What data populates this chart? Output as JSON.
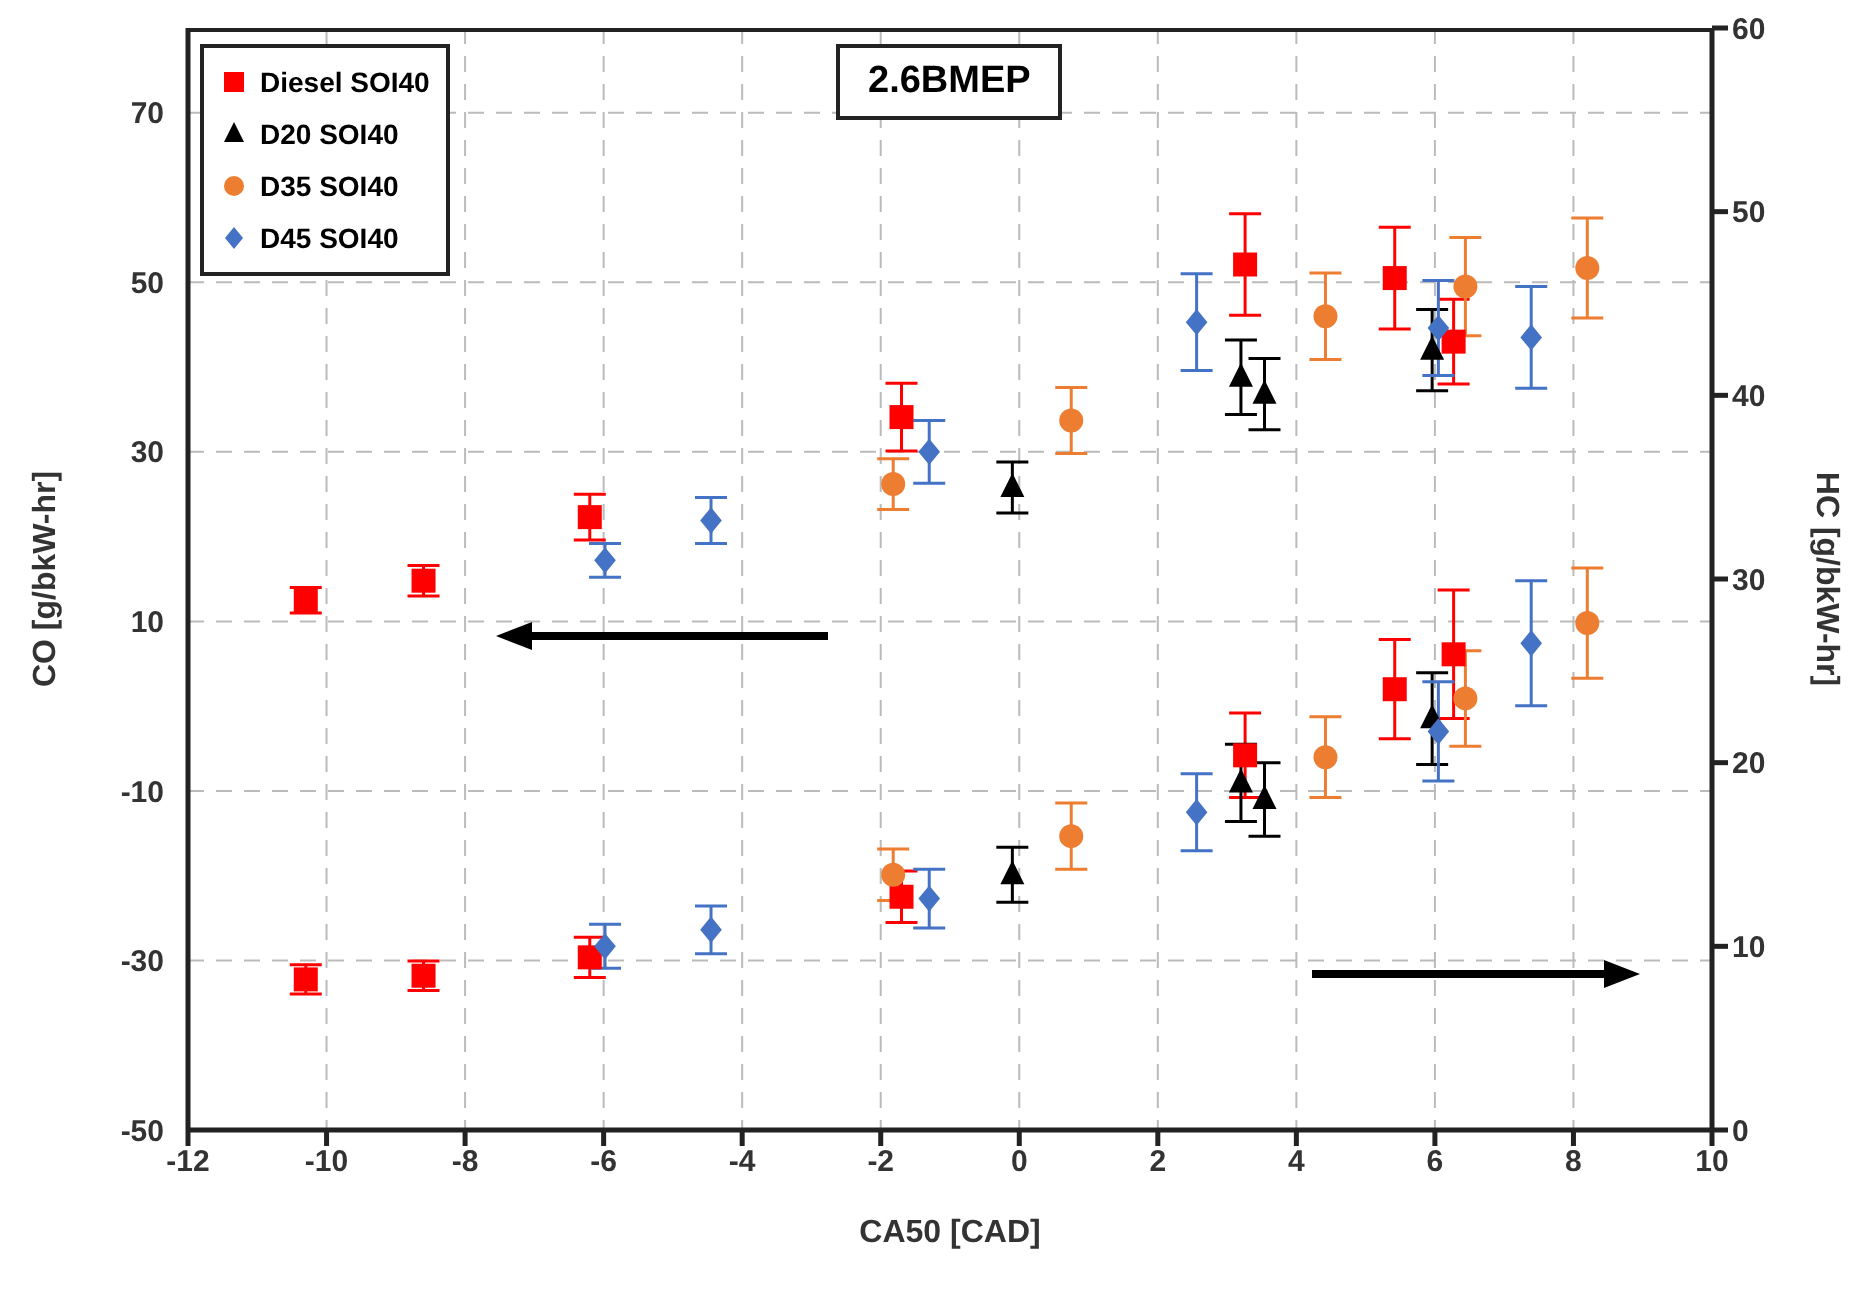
{
  "chart_data": {
    "type": "scatter",
    "title": "2.6BMEP",
    "xlabel": "CA50 [CAD]",
    "ylabel": "CO [g/bkW-hr]",
    "y2label": "HC [g/bkW-hr]",
    "xlim": [
      -12,
      10
    ],
    "xticks": [
      -12,
      -10,
      -8,
      -6,
      -4,
      -2,
      0,
      2,
      4,
      6,
      8,
      10
    ],
    "ylim": [
      -50,
      80
    ],
    "yticks": [
      -50,
      -30,
      -10,
      10,
      30,
      50,
      70
    ],
    "y2lim": [
      0,
      60
    ],
    "y2ticks": [
      0,
      10,
      20,
      30,
      40,
      50,
      60
    ],
    "grid": true,
    "legend": "top left",
    "series": [
      {
        "name": "Diesel SOI40",
        "color": "#ff0000",
        "marker": "square",
        "x": [
          -10.3,
          -8.6,
          -6.2,
          -1.7,
          3.26,
          5.42,
          6.27
        ],
        "values": [
          12.5,
          14.8,
          22.3,
          34.1,
          52.1,
          50.5,
          43.0
        ],
        "errors": [
          1.5,
          1.8,
          2.7,
          4,
          6,
          6,
          5
        ]
      },
      {
        "name": "D20 SOI40",
        "color": "#000000",
        "marker": "triangle",
        "x": [
          -0.1,
          3.2,
          3.54,
          5.96
        ],
        "values": [
          25.8,
          38.8,
          36.8,
          42.0
        ],
        "errors": [
          3,
          4.4,
          4.2,
          4.8
        ]
      },
      {
        "name": "D35 SOI40",
        "color": "#ed7d31",
        "marker": "circle",
        "x": [
          -1.82,
          0.75,
          4.42,
          6.44,
          8.2
        ],
        "values": [
          26.2,
          33.7,
          46.0,
          49.5,
          51.7
        ],
        "errors": [
          3,
          3.9,
          5.1,
          5.8,
          5.9
        ]
      },
      {
        "name": "D45 SOI40",
        "color": "#4472c4",
        "marker": "diamond",
        "x": [
          -5.98,
          -4.45,
          -1.3,
          2.56,
          6.05,
          7.39
        ],
        "values": [
          17.2,
          21.9,
          30.0,
          45.3,
          44.6,
          43.5
        ],
        "errors": [
          2,
          2.7,
          3.7,
          5.7,
          5.6,
          6
        ]
      },
      {
        "color": "#ff0000",
        "marker": "square",
        "axis": "y2",
        "x": [
          -10.3,
          -8.6,
          -6.2,
          -1.7,
          3.26,
          5.42,
          6.27
        ],
        "values": [
          8.2,
          8.4,
          9.4,
          12.7,
          20.4,
          24.0,
          25.9
        ],
        "errors": [
          0.8,
          0.8,
          1.1,
          1.4,
          2.3,
          2.7,
          3.5
        ]
      },
      {
        "color": "#000000",
        "marker": "triangle",
        "axis": "y2",
        "x": [
          -0.1,
          3.2,
          3.54,
          5.96
        ],
        "values": [
          13.9,
          18.9,
          18.0,
          22.4
        ],
        "errors": [
          1.5,
          2.1,
          2,
          2.5
        ]
      },
      {
        "color": "#ed7d31",
        "marker": "circle",
        "axis": "y2",
        "x": [
          -1.82,
          0.75,
          4.42,
          6.44,
          8.2
        ],
        "values": [
          13.9,
          16.0,
          20.3,
          23.5,
          27.6
        ],
        "errors": [
          1.4,
          1.8,
          2.2,
          2.6,
          3
        ]
      },
      {
        "color": "#4472c4",
        "marker": "diamond",
        "axis": "y2",
        "x": [
          -5.98,
          -4.45,
          -1.3,
          2.56,
          6.05,
          7.39
        ],
        "values": [
          10.0,
          10.9,
          12.6,
          17.3,
          21.7,
          26.5
        ],
        "errors": [
          1.2,
          1.3,
          1.6,
          2.1,
          2.7,
          3.4
        ]
      }
    ]
  }
}
